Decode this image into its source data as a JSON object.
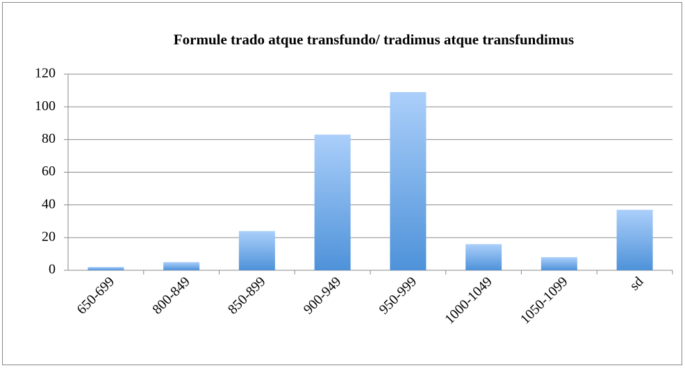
{
  "chart_data": {
    "type": "bar",
    "title": "Formule trado atque transfundo/ tradimus atque transfundimus",
    "categories": [
      "650-699",
      "800-849",
      "850-899",
      "900-949",
      "950-999",
      "1000-1049",
      "1050-1099",
      "sd"
    ],
    "values": [
      2,
      5,
      24,
      83,
      109,
      16,
      8,
      37
    ],
    "color": "#5b9bd5",
    "ylim": [
      0,
      120
    ],
    "yticks": [
      0,
      20,
      40,
      60,
      80,
      100,
      120
    ],
    "grid": true
  }
}
